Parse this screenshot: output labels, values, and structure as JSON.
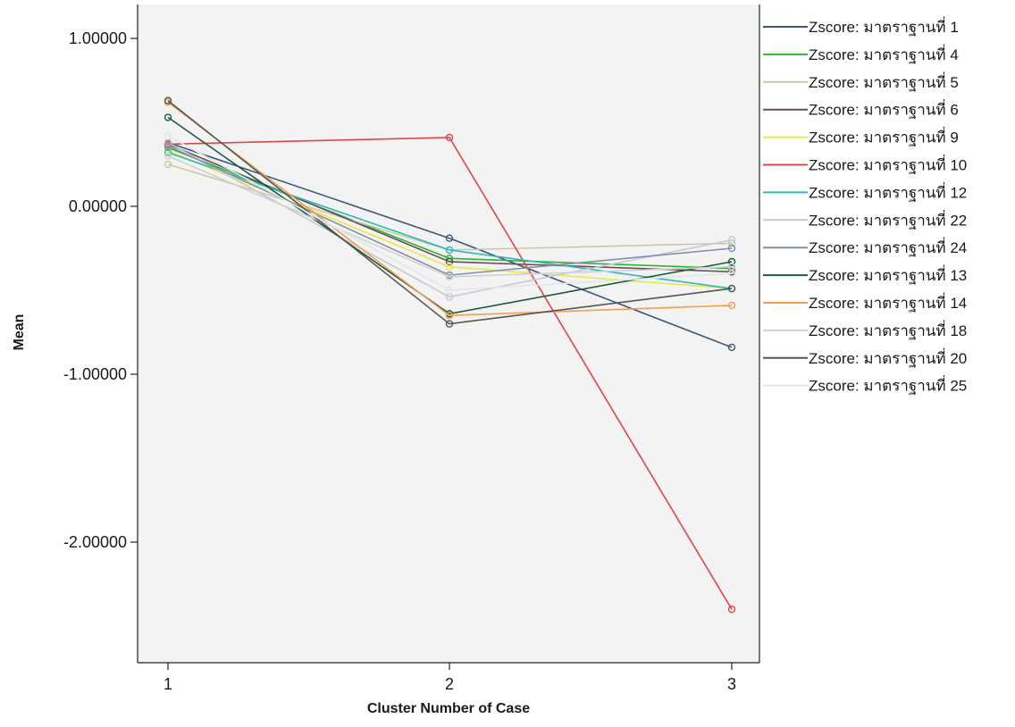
{
  "chart_data": {
    "type": "line",
    "title": "",
    "xlabel": "Cluster Number of Case",
    "ylabel": "Mean",
    "categories": [
      "1",
      "2",
      "3"
    ],
    "ylim": [
      -2.7,
      1.2
    ],
    "yticks": [
      1.0,
      0.0,
      -1.0,
      -2.0
    ],
    "ytick_labels": [
      "1.00000",
      "0.00000",
      "-1.00000",
      "-2.00000"
    ],
    "grid": false,
    "legend_position": "right",
    "plot_background": "#f3f3f3",
    "series": [
      {
        "name": "Zscore: มาตราฐานที่  1",
        "color": "#3c5a78",
        "values": [
          0.38,
          -0.19,
          -0.84
        ]
      },
      {
        "name": "Zscore: มาตราฐานที่  4",
        "color": "#2fb52f",
        "values": [
          0.35,
          -0.31,
          -0.37
        ]
      },
      {
        "name": "Zscore: มาตราฐานที่  5",
        "color": "#c9c9a6",
        "values": [
          0.25,
          -0.26,
          -0.22
        ]
      },
      {
        "name": "Zscore: มาตราฐานที่  6",
        "color": "#6e4a5e",
        "values": [
          0.37,
          -0.33,
          -0.39
        ]
      },
      {
        "name": "Zscore: มาตราฐานที่  9",
        "color": "#e8e84a",
        "values": [
          0.33,
          -0.36,
          -0.49
        ]
      },
      {
        "name": "Zscore: มาตราฐานที่  10",
        "color": "#e0454b",
        "values": [
          0.37,
          0.41,
          -2.4
        ]
      },
      {
        "name": "Zscore: มาตราฐานที่  12",
        "color": "#2fb8b8",
        "values": [
          0.32,
          -0.26,
          -0.49
        ]
      },
      {
        "name": "Zscore: มาตราฐานที่  22",
        "color": "#c8c8d8",
        "values": [
          0.38,
          -0.54,
          -0.2
        ]
      },
      {
        "name": "Zscore: มาตราฐานที่  24",
        "color": "#8090a8",
        "values": [
          0.36,
          -0.41,
          -0.25
        ]
      },
      {
        "name": "Zscore: มาตราฐานที่  13",
        "color": "#1f5a3a",
        "values": [
          0.53,
          -0.64,
          -0.33
        ]
      },
      {
        "name": "Zscore: มาตราฐานที่  14",
        "color": "#f0a050",
        "values": [
          0.62,
          -0.65,
          -0.59
        ]
      },
      {
        "name": "Zscore: มาตราฐานที่  18",
        "color": "#d0d0d0",
        "values": [
          0.3,
          -0.42,
          -0.36
        ]
      },
      {
        "name": "Zscore: มาตราฐานที่  20",
        "color": "#555555",
        "values": [
          0.63,
          -0.7,
          -0.49
        ]
      },
      {
        "name": "Zscore: มาตราฐานที่  25",
        "color": "#dde8ec",
        "values": [
          0.42,
          -0.5,
          -0.4
        ]
      }
    ]
  }
}
